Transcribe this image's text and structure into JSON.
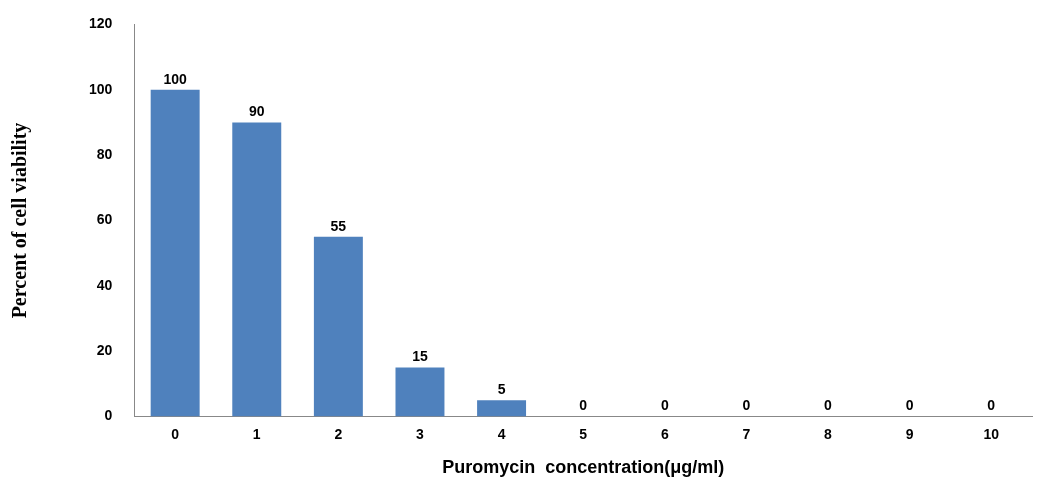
{
  "chart_data": {
    "type": "bar",
    "xlabel": "Puromycin  concentration(μg/ml)",
    "ylabel": "Percent of cell viability",
    "categories": [
      "0",
      "1",
      "2",
      "3",
      "4",
      "5",
      "6",
      "7",
      "8",
      "9",
      "10"
    ],
    "values": [
      100,
      90,
      55,
      15,
      5,
      0,
      0,
      0,
      0,
      0,
      0
    ],
    "color": "#4f81bd",
    "ylim": [
      0,
      120
    ],
    "yticks": [
      0,
      20,
      40,
      60,
      80,
      100,
      120
    ],
    "grid": false,
    "data_labels": true
  }
}
